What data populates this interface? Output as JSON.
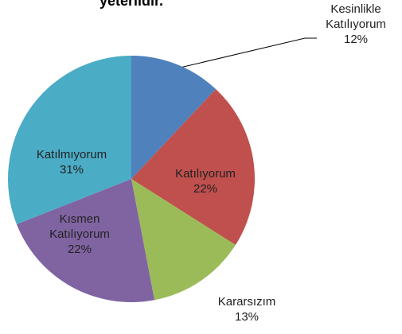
{
  "chart_data": {
    "type": "pie",
    "title": "yeterlidir.",
    "categories": [
      "Kesinlikle Katılıyorum",
      "Katılıyorum",
      "Kararsızım",
      "Kısmen Katılıyorum",
      "Katılmıyorum"
    ],
    "values": [
      12,
      22,
      13,
      22,
      31
    ],
    "value_labels": [
      "12%",
      "22%",
      "13%",
      "22%",
      "31%"
    ],
    "colors": [
      "#4f81bd",
      "#c0504d",
      "#9bbb59",
      "#8064a2",
      "#4bacc6"
    ]
  }
}
